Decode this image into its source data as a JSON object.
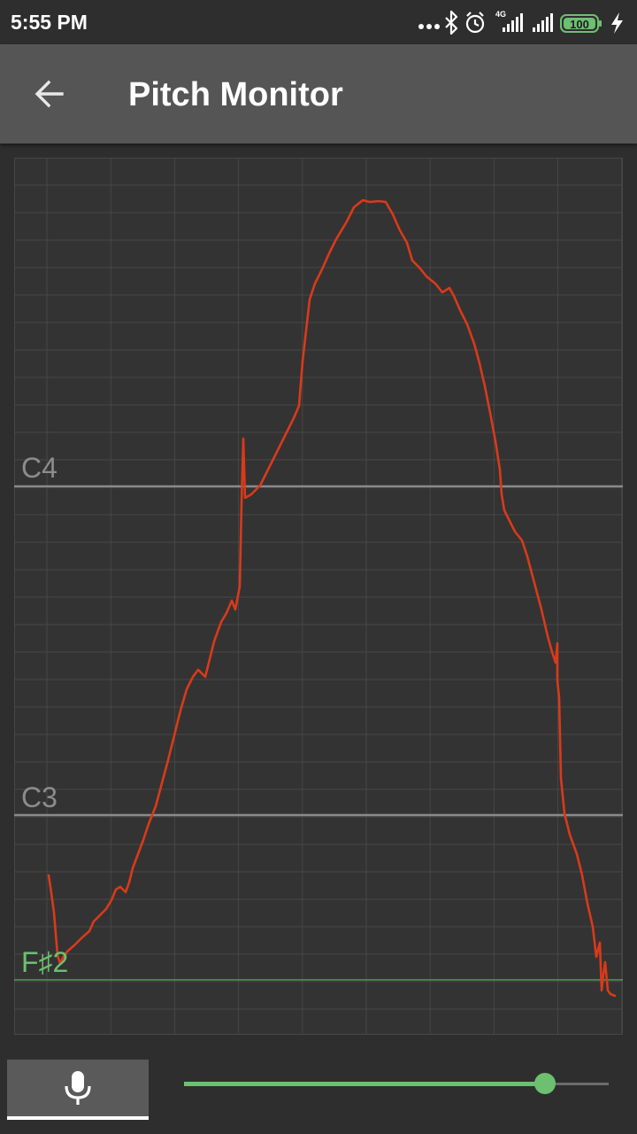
{
  "status_bar": {
    "time": "5:55 PM",
    "network": "4G",
    "battery": "100",
    "icons": [
      "more-dots-icon",
      "bluetooth-icon",
      "alarm-icon",
      "signal-4g-icon",
      "signal-icon",
      "battery-icon",
      "charging-icon"
    ]
  },
  "app_bar": {
    "back_icon": "arrow-left-icon",
    "title": "Pitch Monitor"
  },
  "graph": {
    "note_labels": {
      "c4": "C4",
      "c3": "C3",
      "current": "F♯2"
    },
    "colors": {
      "background": "#333333",
      "grid": "#474747",
      "reference_line": "#8a8a8a",
      "reference_label": "#8c8c8c",
      "current_note": "#6cc070",
      "pitch_trace": "#d93a1a"
    }
  },
  "controls": {
    "mic_icon": "microphone-icon",
    "slider_level": 0.85
  }
}
